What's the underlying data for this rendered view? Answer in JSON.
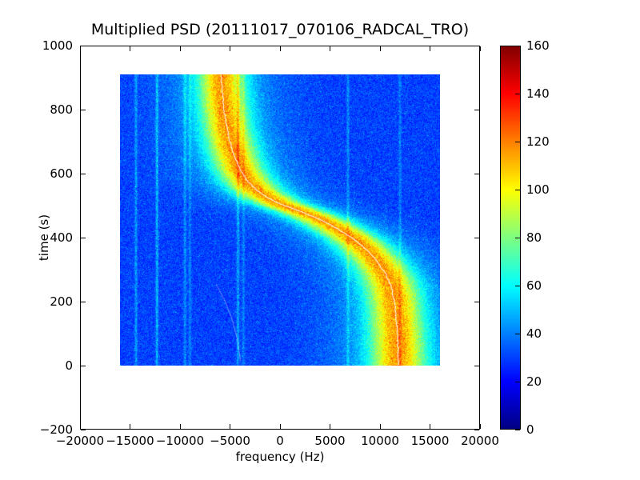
{
  "chart_data": {
    "type": "heatmap",
    "title": "Multiplied PSD (20111017_070106_RADCAL_TRO)",
    "xlabel": "frequency (Hz)",
    "ylabel": "time (s)",
    "xlim": [
      -20000,
      20000
    ],
    "ylim": [
      -200,
      1000
    ],
    "xticks": [
      -20000,
      -15000,
      -10000,
      -5000,
      0,
      5000,
      10000,
      15000,
      20000
    ],
    "yticks": [
      -200,
      0,
      200,
      400,
      600,
      800,
      1000
    ],
    "extent": {
      "fmin": -16000,
      "fmax": 16000,
      "tmin": 0,
      "tmax": 910
    },
    "colormap": "jet",
    "colorbar": {
      "min": 0,
      "max": 160,
      "ticks": [
        0,
        20,
        40,
        60,
        80,
        100,
        120,
        140,
        160
      ]
    },
    "background_level": 30,
    "peak_level": 95,
    "ridge_sigma_hz": [
      1900,
      1550
    ],
    "ridge_track": [
      [
        0,
        11850
      ],
      [
        100,
        11750
      ],
      [
        200,
        11450
      ],
      [
        250,
        11100
      ],
      [
        290,
        10500
      ],
      [
        330,
        9600
      ],
      [
        370,
        8400
      ],
      [
        400,
        7200
      ],
      [
        430,
        5600
      ],
      [
        455,
        4100
      ],
      [
        470,
        3000
      ],
      [
        485,
        1800
      ],
      [
        500,
        500
      ],
      [
        510,
        -300
      ],
      [
        525,
        -1200
      ],
      [
        545,
        -2200
      ],
      [
        575,
        -3200
      ],
      [
        610,
        -3950
      ],
      [
        650,
        -4500
      ],
      [
        700,
        -5000
      ],
      [
        750,
        -5350
      ],
      [
        800,
        -5600
      ],
      [
        850,
        -5750
      ],
      [
        910,
        -5900
      ]
    ],
    "interference_lines": [
      [
        -14400,
        14
      ],
      [
        -12300,
        18
      ],
      [
        -9500,
        12
      ],
      [
        -9000,
        10
      ],
      [
        -4200,
        16
      ],
      [
        -3650,
        10
      ],
      [
        6800,
        12
      ],
      [
        12000,
        10
      ]
    ],
    "white_center_line": true,
    "faint_trace": {
      "from": [
        -3950,
        15
      ],
      "control": [
        -4350,
        150
      ],
      "to": [
        -6400,
        255
      ]
    }
  }
}
